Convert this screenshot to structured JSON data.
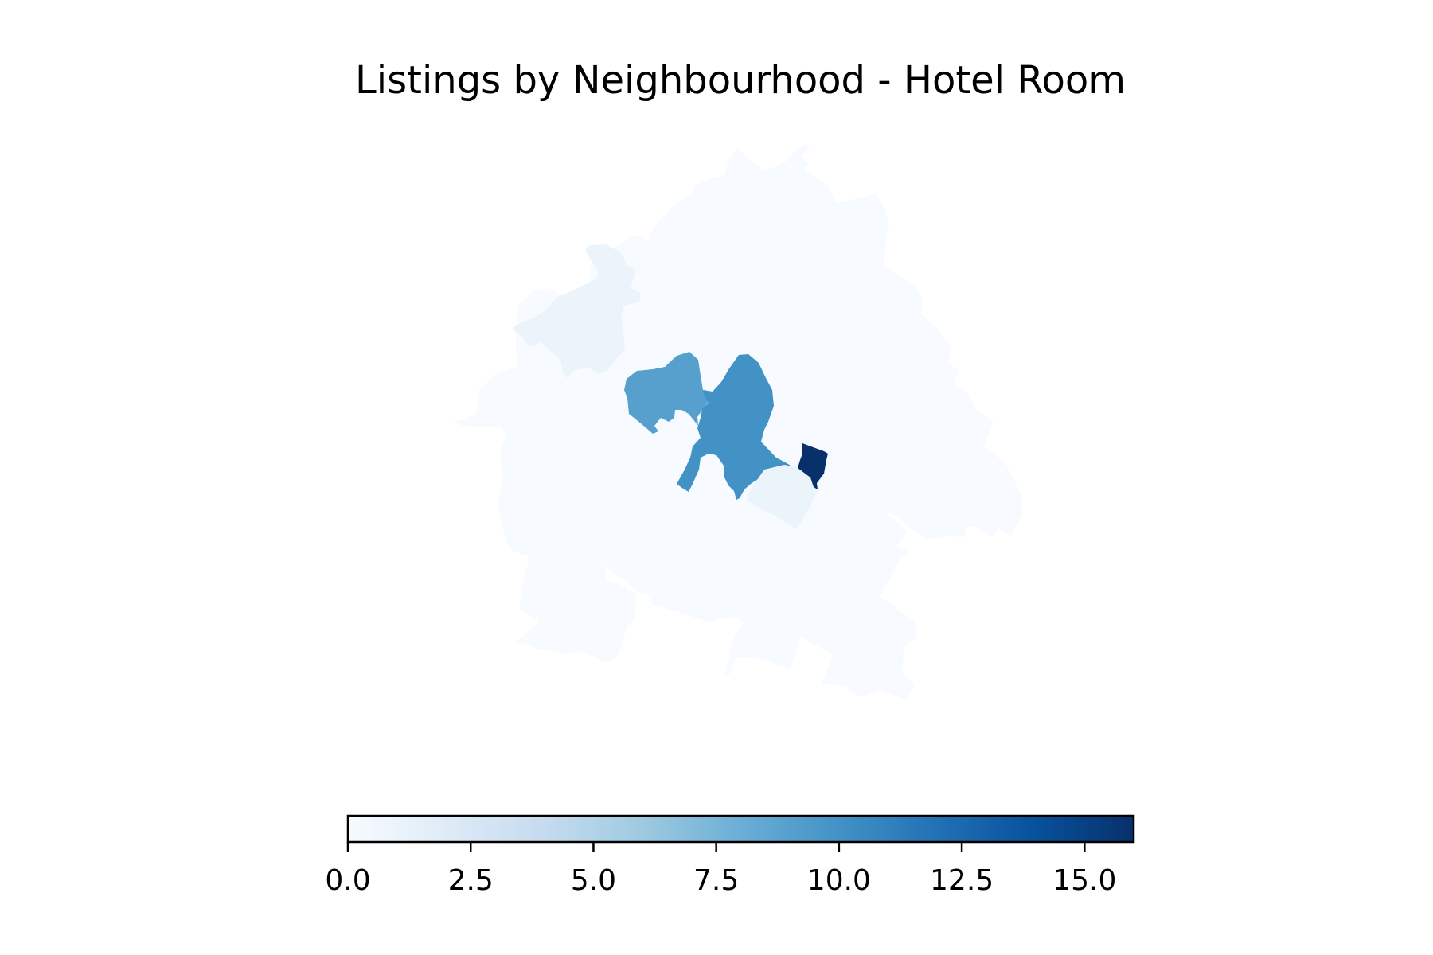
{
  "chart_data": {
    "type": "choropleth",
    "title": "Listings by Neighbourhood - Hotel Room",
    "colormap": "Blues",
    "color_range": [
      0,
      16
    ],
    "colorbar": {
      "orientation": "horizontal",
      "placement": "bottom",
      "ticks": [
        0.0,
        2.5,
        5.0,
        7.5,
        10.0,
        12.5,
        15.0
      ],
      "tick_labels": [
        "0.0",
        "2.5",
        "5.0",
        "7.5",
        "10.0",
        "12.5",
        "15.0"
      ]
    },
    "regions": [
      {
        "id": "outer-large",
        "value": 0
      },
      {
        "id": "northwest-lobe",
        "value": 1
      },
      {
        "id": "central-west",
        "value": 9
      },
      {
        "id": "central-main",
        "value": 10
      },
      {
        "id": "southeast-small",
        "value": 1
      },
      {
        "id": "east-strip",
        "value": 16
      }
    ]
  }
}
